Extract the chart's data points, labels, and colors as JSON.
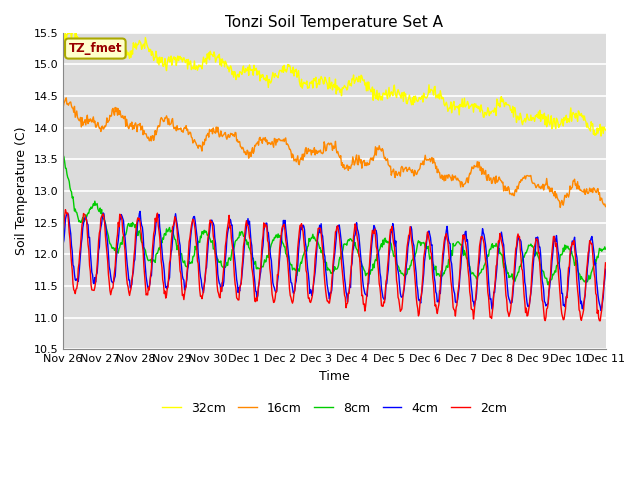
{
  "title": "Tonzi Soil Temperature Set A",
  "xlabel": "Time",
  "ylabel": "Soil Temperature (C)",
  "ylim": [
    10.5,
    15.5
  ],
  "yticks": [
    10.5,
    11.0,
    11.5,
    12.0,
    12.5,
    13.0,
    13.5,
    14.0,
    14.5,
    15.0,
    15.5
  ],
  "colors": {
    "2cm": "#ff0000",
    "4cm": "#0000ff",
    "8cm": "#00cc00",
    "16cm": "#ff8800",
    "32cm": "#ffff00"
  },
  "annotation_text": "TZ_fmet",
  "annotation_bg": "#ffffcc",
  "annotation_fg": "#990000",
  "plot_bg": "#dcdcdc",
  "n_days": 15,
  "n_points_per_day": 48,
  "day_labels": [
    "Nov 26",
    "Nov 27",
    "Nov 28",
    "Nov 29",
    "Nov 30",
    "Dec 1",
    "Dec 2",
    "Dec 3",
    "Dec 4",
    "Dec 5",
    "Dec 6",
    "Dec 7",
    "Dec 8",
    "Dec 9",
    "Dec 10",
    "Dec 11"
  ]
}
